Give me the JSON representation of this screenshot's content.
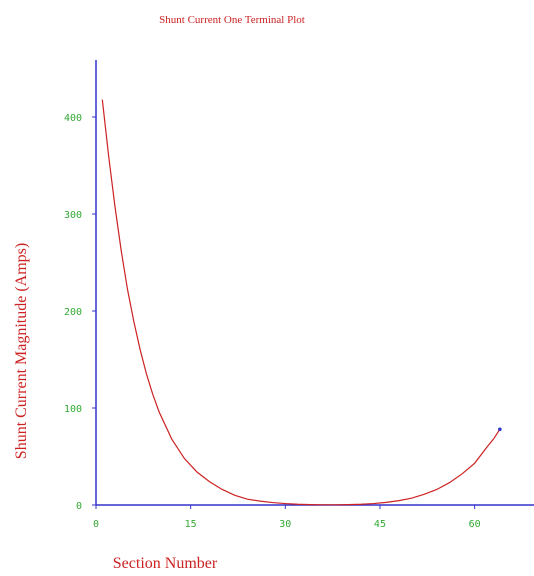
{
  "chart_data": {
    "type": "line",
    "title": "Shunt Current One Terminal Plot",
    "xlabel": "Section Number",
    "ylabel": "Shunt Current Magnitude (Amps)",
    "xlim": [
      0,
      70
    ],
    "ylim": [
      0,
      460
    ],
    "x_ticks": [
      "0",
      "15",
      "30",
      "45",
      "60"
    ],
    "y_ticks": [
      "0",
      "100",
      "200",
      "300",
      "400"
    ],
    "x_tick_values": [
      0,
      15,
      30,
      45,
      60
    ],
    "y_tick_values": [
      0,
      100,
      200,
      300,
      400
    ],
    "grid": false,
    "colors": {
      "line": "#cc2222",
      "axis": "#3333cc",
      "tick_label": "#33aa33",
      "text": "#cc2222"
    },
    "series": [
      {
        "x": [
          1,
          2,
          3,
          4,
          5,
          6,
          7,
          8,
          9,
          10,
          12,
          14,
          16,
          18,
          20,
          22,
          24,
          26,
          28,
          30,
          32,
          34,
          36,
          38,
          40,
          42,
          44,
          46,
          48,
          50,
          52,
          54,
          56,
          58,
          60,
          62,
          63,
          64
        ],
        "values": [
          418,
          360,
          308,
          262,
          222,
          189,
          160,
          135,
          114,
          96,
          68,
          48,
          34,
          24,
          16,
          10,
          6,
          4,
          2.5,
          1.5,
          0.8,
          0.4,
          0.2,
          0.2,
          0.4,
          0.8,
          1.5,
          2.7,
          4.5,
          7,
          11,
          16,
          23,
          32,
          43,
          60,
          68,
          78
        ]
      }
    ]
  }
}
